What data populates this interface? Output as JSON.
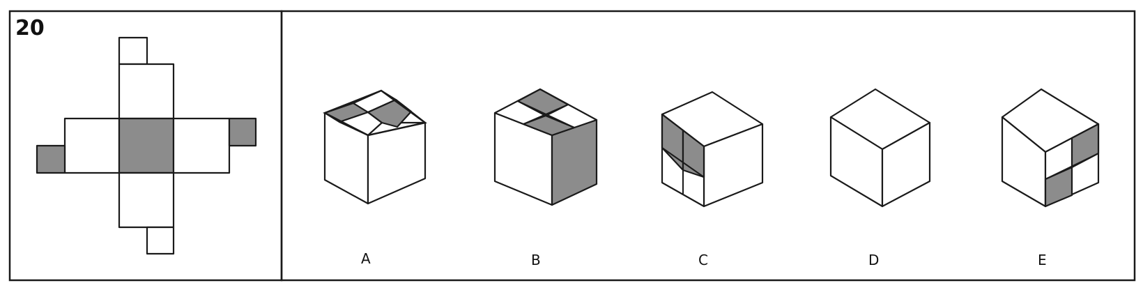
{
  "question_number": "20",
  "colors": {
    "shade": "#8c8c8c",
    "line": "#1a1a1a",
    "paper": "#ffffff"
  },
  "options": [
    {
      "label": "A"
    },
    {
      "label": "B"
    },
    {
      "label": "C"
    },
    {
      "label": "D"
    },
    {
      "label": "E"
    }
  ]
}
